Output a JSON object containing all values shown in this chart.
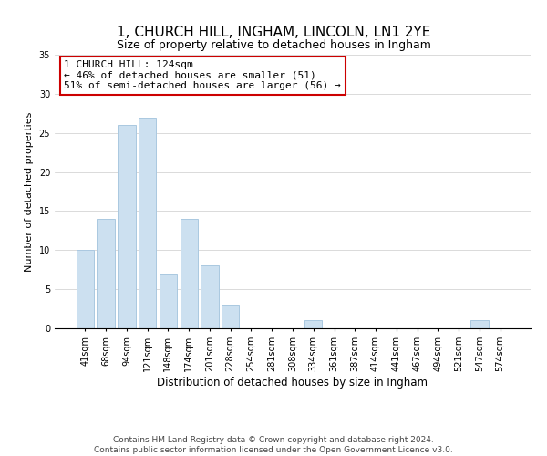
{
  "title": "1, CHURCH HILL, INGHAM, LINCOLN, LN1 2YE",
  "subtitle": "Size of property relative to detached houses in Ingham",
  "xlabel": "Distribution of detached houses by size in Ingham",
  "ylabel": "Number of detached properties",
  "bar_labels": [
    "41sqm",
    "68sqm",
    "94sqm",
    "121sqm",
    "148sqm",
    "174sqm",
    "201sqm",
    "228sqm",
    "254sqm",
    "281sqm",
    "308sqm",
    "334sqm",
    "361sqm",
    "387sqm",
    "414sqm",
    "441sqm",
    "467sqm",
    "494sqm",
    "521sqm",
    "547sqm",
    "574sqm"
  ],
  "bar_values": [
    10,
    14,
    26,
    27,
    7,
    14,
    8,
    3,
    0,
    0,
    0,
    1,
    0,
    0,
    0,
    0,
    0,
    0,
    0,
    1,
    0
  ],
  "bar_color": "#cce0f0",
  "bar_edge_color": "#aac8e0",
  "annotation_box_text": "1 CHURCH HILL: 124sqm\n← 46% of detached houses are smaller (51)\n51% of semi-detached houses are larger (56) →",
  "annotation_box_edgecolor": "#cc0000",
  "annotation_box_facecolor": "#ffffff",
  "annotation_fontsize": 8,
  "ylim": [
    0,
    35
  ],
  "yticks": [
    0,
    5,
    10,
    15,
    20,
    25,
    30,
    35
  ],
  "title_fontsize": 11,
  "subtitle_fontsize": 9,
  "xlabel_fontsize": 8.5,
  "ylabel_fontsize": 8,
  "tick_fontsize": 7,
  "footer_line1": "Contains HM Land Registry data © Crown copyright and database right 2024.",
  "footer_line2": "Contains public sector information licensed under the Open Government Licence v3.0.",
  "footer_fontsize": 6.5
}
